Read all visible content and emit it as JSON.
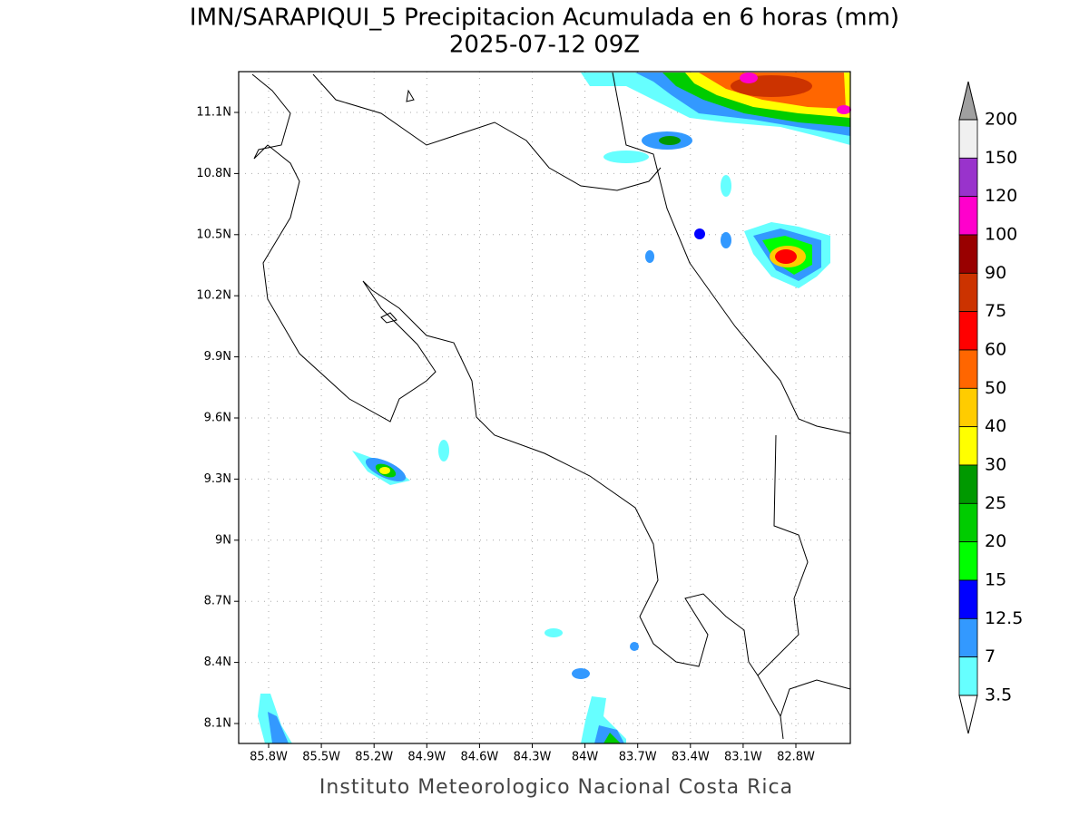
{
  "map": {
    "title": "IMN/SARAPIQUI_5 Precipitacion Acumulada en 6 horas (mm)",
    "subtitle": "2025-07-12 09Z",
    "footer": "Instituto Meteorologico Nacional Costa Rica",
    "lon_ticks": [
      "85.8W",
      "85.5W",
      "85.2W",
      "84.9W",
      "84.6W",
      "84.3W",
      "84W",
      "83.7W",
      "83.4W",
      "83.1W",
      "82.8W"
    ],
    "lat_ticks": [
      "11.1N",
      "10.8N",
      "10.5N",
      "10.2N",
      "9.9N",
      "9.6N",
      "9.3N",
      "9N",
      "8.7N",
      "8.4N",
      "8.1N"
    ],
    "legend": {
      "levels": [
        200,
        150,
        120,
        100,
        90,
        75,
        60,
        50,
        40,
        30,
        25,
        20,
        15,
        12.5,
        7,
        3.5
      ],
      "colors": [
        "#f0f0f0",
        "#9933cc",
        "#ff00cc",
        "#990000",
        "#cc3300",
        "#ff0000",
        "#ff6600",
        "#ffcc00",
        "#ffff00",
        "#009900",
        "#00cc00",
        "#00ff00",
        "#0000ff",
        "#3399ff",
        "#66ffff"
      ],
      "over_color": "#a0a0a0",
      "under_color": "#ffffff"
    }
  }
}
